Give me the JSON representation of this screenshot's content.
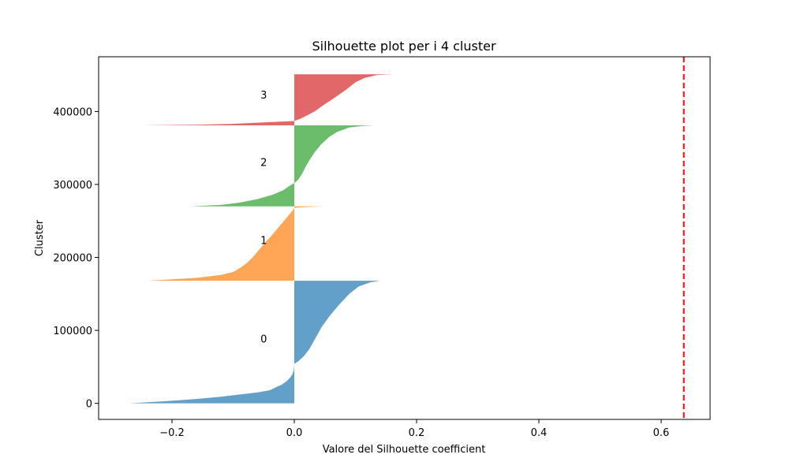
{
  "chart_data": {
    "type": "area",
    "title": "Silhouette plot per i 4 cluster",
    "xlabel": "Valore del Silhouette coefficient",
    "ylabel": "Cluster",
    "xlim": [
      -0.32,
      0.68
    ],
    "ylim": [
      -22000,
      475000
    ],
    "x_ticks": [
      -0.2,
      0.0,
      0.2,
      0.4,
      0.6
    ],
    "x_tick_labels": [
      "−0.2",
      "0.0",
      "0.2",
      "0.4",
      "0.6"
    ],
    "y_ticks": [
      0,
      100000,
      200000,
      300000,
      400000
    ],
    "y_tick_labels": [
      "0",
      "100000",
      "200000",
      "300000",
      "400000"
    ],
    "grid": false,
    "average_silhouette": 0.637,
    "average_line_color": "#ff0000",
    "clusters": [
      {
        "label": "0",
        "color": "#1f77b4",
        "label_position": [
          -0.05,
          89000
        ],
        "silhouette_curve": [
          [
            0,
            -0.27
          ],
          [
            3000,
            -0.21
          ],
          [
            6000,
            -0.16
          ],
          [
            9000,
            -0.12
          ],
          [
            12000,
            -0.09
          ],
          [
            15000,
            -0.06
          ],
          [
            18000,
            -0.04
          ],
          [
            22000,
            -0.03
          ],
          [
            26000,
            -0.02
          ],
          [
            30000,
            -0.013
          ],
          [
            35000,
            -0.007
          ],
          [
            40000,
            -0.003
          ],
          [
            45000,
            -0.001
          ],
          [
            50000,
            -0.0003
          ],
          [
            54000,
            0.0
          ],
          [
            58000,
            0.007
          ],
          [
            65000,
            0.016
          ],
          [
            75000,
            0.025
          ],
          [
            90000,
            0.035
          ],
          [
            105000,
            0.045
          ],
          [
            120000,
            0.058
          ],
          [
            135000,
            0.073
          ],
          [
            150000,
            0.09
          ],
          [
            160000,
            0.105
          ],
          [
            166000,
            0.125
          ],
          [
            168000,
            0.14
          ]
        ]
      },
      {
        "label": "1",
        "color": "#ff7f0e",
        "label_position": [
          -0.05,
          224000
        ],
        "silhouette_curve": [
          [
            168000,
            -0.24
          ],
          [
            172000,
            -0.16
          ],
          [
            176000,
            -0.12
          ],
          [
            180000,
            -0.1
          ],
          [
            186000,
            -0.088
          ],
          [
            192000,
            -0.078
          ],
          [
            200000,
            -0.068
          ],
          [
            210000,
            -0.058
          ],
          [
            220000,
            -0.048
          ],
          [
            230000,
            -0.037
          ],
          [
            240000,
            -0.027
          ],
          [
            250000,
            -0.017
          ],
          [
            258000,
            -0.009
          ],
          [
            264000,
            -0.003
          ],
          [
            268000,
            0.0
          ],
          [
            269000,
            0.02
          ],
          [
            270000,
            0.05
          ]
        ]
      },
      {
        "label": "2",
        "color": "#2ca02c",
        "label_position": [
          -0.05,
          331000
        ],
        "silhouette_curve": [
          [
            270000,
            -0.17
          ],
          [
            272000,
            -0.12
          ],
          [
            275000,
            -0.09
          ],
          [
            280000,
            -0.06
          ],
          [
            286000,
            -0.035
          ],
          [
            292000,
            -0.018
          ],
          [
            298000,
            -0.008
          ],
          [
            302000,
            0.0
          ],
          [
            306000,
            0.006
          ],
          [
            315000,
            0.013
          ],
          [
            325000,
            0.019
          ],
          [
            335000,
            0.026
          ],
          [
            345000,
            0.034
          ],
          [
            355000,
            0.044
          ],
          [
            365000,
            0.057
          ],
          [
            372000,
            0.07
          ],
          [
            378000,
            0.09
          ],
          [
            380000,
            0.11
          ],
          [
            381000,
            0.13
          ]
        ]
      },
      {
        "label": "3",
        "color": "#d62728",
        "label_position": [
          -0.05,
          423000
        ],
        "silhouette_curve": [
          [
            381000,
            -0.25
          ],
          [
            382000,
            -0.15
          ],
          [
            383000,
            -0.1
          ],
          [
            385000,
            -0.05
          ],
          [
            387000,
            0.0
          ],
          [
            390000,
            0.01
          ],
          [
            395000,
            0.022
          ],
          [
            400000,
            0.033
          ],
          [
            410000,
            0.05
          ],
          [
            420000,
            0.068
          ],
          [
            430000,
            0.085
          ],
          [
            440000,
            0.1
          ],
          [
            446000,
            0.115
          ],
          [
            450000,
            0.135
          ],
          [
            451000,
            0.16
          ]
        ]
      }
    ]
  }
}
